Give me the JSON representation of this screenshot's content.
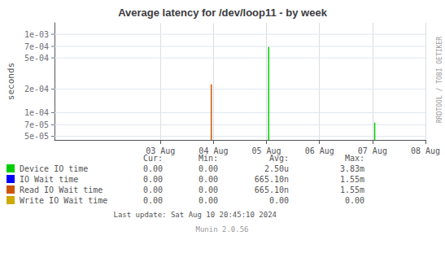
{
  "chart_data": {
    "type": "spike",
    "title": "Average latency for /dev/loop11 - by week",
    "ylabel": "seconds",
    "log": "y",
    "grid": true,
    "legend": "bottom",
    "baseline": 4.5e-05,
    "xlim": [
      1722470400,
      1723075200
    ],
    "ylim": [
      4.5e-05,
      0.0014
    ],
    "xticks": [
      {
        "value": 1722643200,
        "label": "03 Aug"
      },
      {
        "value": 1722729600,
        "label": "04 Aug"
      },
      {
        "value": 1722816000,
        "label": "05 Aug"
      },
      {
        "value": 1722902400,
        "label": "06 Aug"
      },
      {
        "value": 1722988800,
        "label": "07 Aug"
      },
      {
        "value": 1723075200,
        "label": "08 Aug"
      }
    ],
    "yticks": [
      {
        "value": 5e-05,
        "label": "5e-05"
      },
      {
        "value": 7e-05,
        "label": "7e-05"
      },
      {
        "value": 0.0001,
        "label": "1e-04"
      },
      {
        "value": 0.0002,
        "label": "2e-04"
      },
      {
        "value": 0.0005,
        "label": "5e-04"
      },
      {
        "value": 0.0007,
        "label": "7e-04"
      },
      {
        "value": 0.001,
        "label": "1e-03"
      }
    ],
    "legend_columns": [
      "Cur:",
      "Min:",
      "Avg:",
      "Max:"
    ],
    "series": [
      {
        "name": "Device IO time",
        "color": "#00cc00",
        "x": [
          1722819600,
          1722992400
        ],
        "values": [
          0.00069,
          7.5e-05
        ],
        "stats": [
          "0.00",
          "0.00",
          "2.50u",
          "3.83m"
        ]
      },
      {
        "name": "IO Wait time",
        "color": "#0000ff",
        "x": [],
        "values": [],
        "stats": [
          "0.00",
          "0.00",
          "665.10n",
          "1.55m"
        ]
      },
      {
        "name": "Read IO Wait time",
        "color": "#cc5500",
        "x": [
          1722726000
        ],
        "values": [
          0.00023
        ],
        "stats": [
          "0.00",
          "0.00",
          "665.10n",
          "1.55m"
        ]
      },
      {
        "name": "Write IO Wait time",
        "color": "#ccaa00",
        "x": [],
        "values": [],
        "stats": [
          "0.00",
          "0.00",
          "0.00",
          "0.00"
        ]
      }
    ],
    "annotations": [
      "RRDTOOL / TOBI OETIKER",
      "Last update: Sat Aug 10 20:45:10 2024",
      "Munin 2.0.56"
    ]
  }
}
